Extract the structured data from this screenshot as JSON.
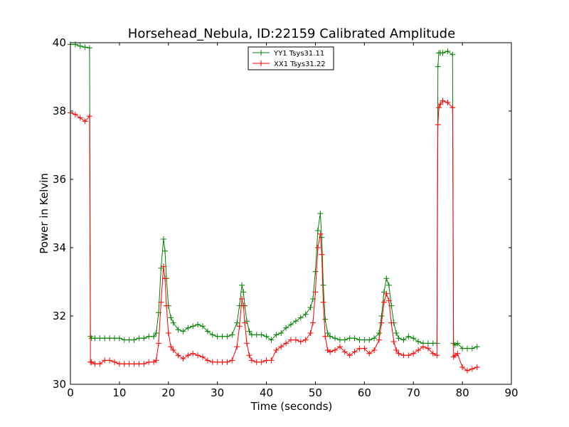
{
  "chart_data": {
    "type": "line",
    "title": "Horsehead_Nebula, ID:22159 Calibrated Amplitude",
    "xlabel": "Time (seconds)",
    "ylabel": "Power in Kelvin",
    "xlim": [
      0,
      90
    ],
    "ylim": [
      30,
      40
    ],
    "xticks": [
      "0",
      "10",
      "20",
      "30",
      "40",
      "50",
      "60",
      "70",
      "80",
      "90"
    ],
    "yticks": [
      "30",
      "32",
      "34",
      "36",
      "38",
      "40"
    ],
    "grid": false,
    "legend_position": "top-center",
    "series": [
      {
        "name": "YY1 Tsys31.11",
        "color": "#008000",
        "marker": "plus",
        "x": [
          0,
          1,
          2,
          3,
          3.9,
          4.1,
          4.3,
          5,
          6,
          7,
          8,
          9,
          10,
          11,
          12,
          13,
          14,
          15,
          16,
          17,
          17.5,
          18,
          18.5,
          19,
          19.3,
          19.6,
          20,
          20.5,
          21,
          22,
          23,
          24,
          25,
          26,
          27,
          28,
          29,
          30,
          31,
          32,
          33,
          34,
          34.5,
          35,
          35.3,
          35.6,
          36,
          36.5,
          37,
          38,
          39,
          40,
          41,
          42,
          43,
          44,
          45,
          46,
          47,
          48,
          49,
          49.5,
          50,
          50.5,
          51,
          51.3,
          51.6,
          52,
          52.5,
          53,
          54,
          55,
          56,
          57,
          58,
          59,
          60,
          61,
          62,
          63,
          63.5,
          64,
          64.5,
          65,
          65.5,
          66,
          66.5,
          67,
          68,
          69,
          70,
          71,
          72,
          73,
          74,
          74.8,
          75,
          75.2,
          75.5,
          76,
          77,
          78,
          78.2,
          78.5,
          79,
          80,
          81,
          82,
          83
        ],
        "values": [
          39.95,
          39.95,
          39.9,
          39.87,
          39.85,
          31.4,
          31.35,
          31.35,
          31.35,
          31.35,
          31.35,
          31.35,
          31.35,
          31.3,
          31.3,
          31.3,
          31.35,
          31.35,
          31.4,
          31.4,
          31.5,
          32.1,
          33.4,
          34.25,
          33.9,
          33.1,
          32.3,
          31.95,
          31.8,
          31.6,
          31.55,
          31.65,
          31.7,
          31.75,
          31.7,
          31.55,
          31.45,
          31.4,
          31.4,
          31.4,
          31.45,
          31.8,
          32.3,
          32.9,
          32.7,
          32.3,
          31.85,
          31.55,
          31.45,
          31.45,
          31.45,
          31.4,
          31.3,
          31.45,
          31.5,
          31.65,
          31.75,
          31.85,
          31.95,
          32.05,
          32.25,
          32.5,
          33.3,
          34.5,
          35.0,
          34.3,
          32.9,
          31.9,
          31.5,
          31.4,
          31.35,
          31.3,
          31.3,
          31.35,
          31.35,
          31.3,
          31.3,
          31.3,
          31.35,
          31.5,
          32.0,
          32.7,
          33.1,
          32.9,
          32.3,
          31.8,
          31.5,
          31.35,
          31.3,
          31.4,
          31.35,
          31.25,
          31.2,
          31.2,
          31.2,
          31.2,
          39.3,
          39.7,
          39.7,
          39.7,
          39.75,
          39.65,
          31.2,
          31.15,
          31.2,
          31.05,
          31.05,
          31.05,
          31.1
        ]
      },
      {
        "name": "XX1 Tsys31.22",
        "color": "#ff0000",
        "marker": "plus",
        "x": [
          0,
          1,
          2,
          3,
          3.9,
          4.1,
          4.3,
          5,
          6,
          7,
          8,
          9,
          10,
          11,
          12,
          13,
          14,
          15,
          16,
          17,
          17.5,
          18,
          18.5,
          19,
          19.3,
          19.6,
          20,
          20.5,
          21,
          22,
          23,
          24,
          25,
          26,
          27,
          28,
          29,
          30,
          31,
          32,
          33,
          34,
          34.5,
          35,
          35.3,
          35.6,
          36,
          36.5,
          37,
          38,
          39,
          40,
          41,
          42,
          43,
          44,
          45,
          46,
          47,
          48,
          49,
          49.5,
          50,
          50.5,
          51,
          51.3,
          51.6,
          52,
          52.5,
          53,
          54,
          55,
          56,
          57,
          58,
          59,
          60,
          61,
          62,
          63,
          63.5,
          64,
          64.5,
          65,
          65.5,
          66,
          66.5,
          67,
          68,
          69,
          70,
          71,
          72,
          73,
          74,
          74.8,
          75,
          75.2,
          75.5,
          76,
          77,
          78,
          78.2,
          78.5,
          79,
          80,
          81,
          82,
          83
        ],
        "values": [
          37.95,
          37.9,
          37.8,
          37.7,
          37.85,
          30.65,
          30.65,
          30.6,
          30.6,
          30.7,
          30.7,
          30.65,
          30.6,
          30.6,
          30.6,
          30.6,
          30.6,
          30.6,
          30.65,
          30.65,
          30.7,
          31.2,
          32.4,
          33.45,
          33.1,
          32.3,
          31.5,
          31.1,
          31.0,
          30.85,
          30.75,
          30.85,
          30.9,
          30.85,
          30.8,
          30.7,
          30.65,
          30.65,
          30.65,
          30.65,
          30.7,
          31.1,
          31.7,
          32.5,
          32.3,
          31.8,
          31.2,
          30.85,
          30.7,
          30.65,
          30.65,
          30.7,
          30.7,
          31.0,
          31.1,
          31.2,
          31.3,
          31.3,
          31.25,
          31.3,
          31.5,
          31.8,
          32.7,
          34.0,
          34.4,
          33.8,
          32.4,
          31.4,
          31.0,
          30.95,
          31.0,
          31.1,
          30.95,
          30.85,
          30.95,
          31.05,
          31.05,
          30.9,
          31.0,
          31.3,
          31.8,
          32.4,
          32.65,
          32.45,
          31.8,
          31.25,
          31.0,
          30.9,
          30.85,
          30.85,
          30.9,
          31.0,
          31.1,
          31.05,
          30.9,
          30.85,
          37.6,
          38.1,
          38.2,
          38.3,
          38.25,
          38.1,
          30.8,
          30.85,
          30.9,
          30.5,
          30.4,
          30.45,
          30.5
        ]
      }
    ]
  }
}
